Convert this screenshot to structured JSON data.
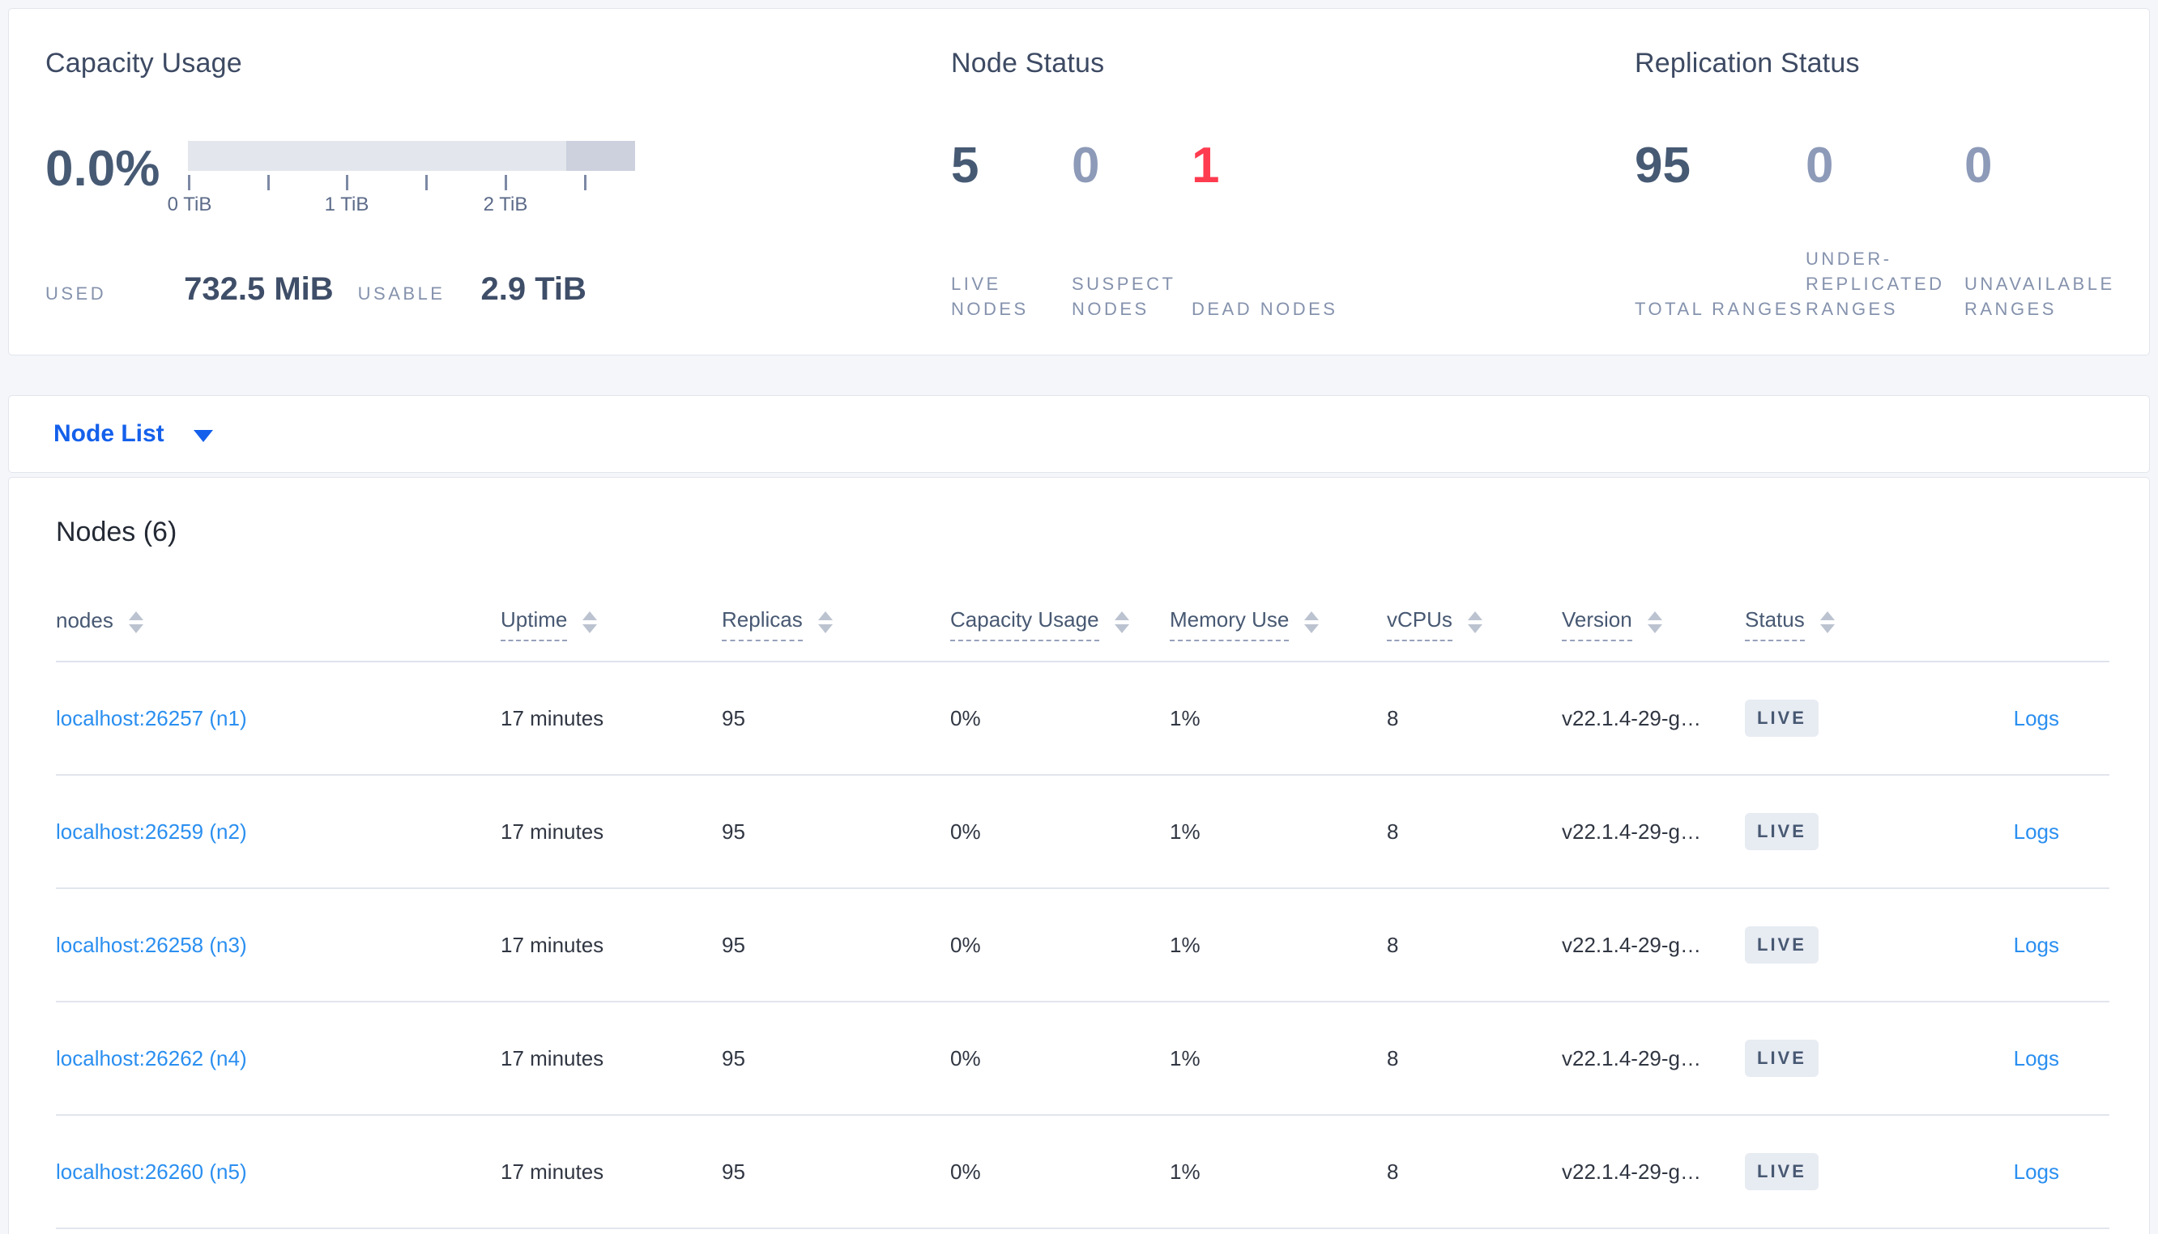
{
  "summary": {
    "capacity": {
      "title": "Capacity Usage",
      "percent": "0.0%",
      "tick_labels": [
        "0 TiB",
        "1 TiB",
        "2 TiB"
      ],
      "used_label": "USED",
      "used_value": "732.5 MiB",
      "usable_label": "USABLE",
      "usable_value": "2.9 TiB"
    },
    "node_status": {
      "title": "Node Status",
      "metrics": [
        {
          "value": "5",
          "label": "LIVE NODES",
          "tone": "dark"
        },
        {
          "value": "0",
          "label": "SUSPECT NODES",
          "tone": "muted"
        },
        {
          "value": "1",
          "label": "DEAD NODES",
          "tone": "danger"
        }
      ]
    },
    "replication": {
      "title": "Replication Status",
      "metrics": [
        {
          "value": "95",
          "label": "TOTAL RANGES",
          "tone": "dark"
        },
        {
          "value": "0",
          "label": "UNDER-REPLICATED RANGES",
          "tone": "muted"
        },
        {
          "value": "0",
          "label": "UNAVAILABLE RANGES",
          "tone": "muted"
        }
      ]
    }
  },
  "view_selector": {
    "label": "Node List",
    "icon": "dropdown-caret-icon"
  },
  "nodes_section": {
    "heading": "Nodes (6)",
    "columns": [
      {
        "label": "nodes",
        "dashed": false
      },
      {
        "label": "Uptime",
        "dashed": true
      },
      {
        "label": "Replicas",
        "dashed": true
      },
      {
        "label": "Capacity Usage",
        "dashed": true
      },
      {
        "label": "Memory Use",
        "dashed": true
      },
      {
        "label": "vCPUs",
        "dashed": true
      },
      {
        "label": "Version",
        "dashed": true
      },
      {
        "label": "Status",
        "dashed": true
      }
    ],
    "rows": [
      {
        "address": "localhost:26257 (n1)",
        "uptime": "17 minutes",
        "replicas": "95",
        "capacity_usage": "0%",
        "memory_use": "1%",
        "vcpus": "8",
        "version": "v22.1.4-29-g…",
        "status": "LIVE",
        "logs": "Logs"
      },
      {
        "address": "localhost:26259 (n2)",
        "uptime": "17 minutes",
        "replicas": "95",
        "capacity_usage": "0%",
        "memory_use": "1%",
        "vcpus": "8",
        "version": "v22.1.4-29-g…",
        "status": "LIVE",
        "logs": "Logs"
      },
      {
        "address": "localhost:26258 (n3)",
        "uptime": "17 minutes",
        "replicas": "95",
        "capacity_usage": "0%",
        "memory_use": "1%",
        "vcpus": "8",
        "version": "v22.1.4-29-g…",
        "status": "LIVE",
        "logs": "Logs"
      },
      {
        "address": "localhost:26262 (n4)",
        "uptime": "17 minutes",
        "replicas": "95",
        "capacity_usage": "0%",
        "memory_use": "1%",
        "vcpus": "8",
        "version": "v22.1.4-29-g…",
        "status": "LIVE",
        "logs": "Logs"
      },
      {
        "address": "localhost:26260 (n5)",
        "uptime": "17 minutes",
        "replicas": "95",
        "capacity_usage": "0%",
        "memory_use": "1%",
        "vcpus": "8",
        "version": "v22.1.4-29-g…",
        "status": "LIVE",
        "logs": "Logs"
      }
    ]
  },
  "colors": {
    "page_background": "#f4f6fa",
    "accent_blue": "#1460eb",
    "link_blue": "#2b8ff0",
    "danger_red": "#ff3b4f",
    "dark_slate": "#475a74",
    "muted_slate": "#8d9ab8",
    "label_gray": "#8592ad",
    "bar_light": "#e3e6ed",
    "bar_dark": "#ccd1dd",
    "badge_background": "#e7ebf2"
  }
}
